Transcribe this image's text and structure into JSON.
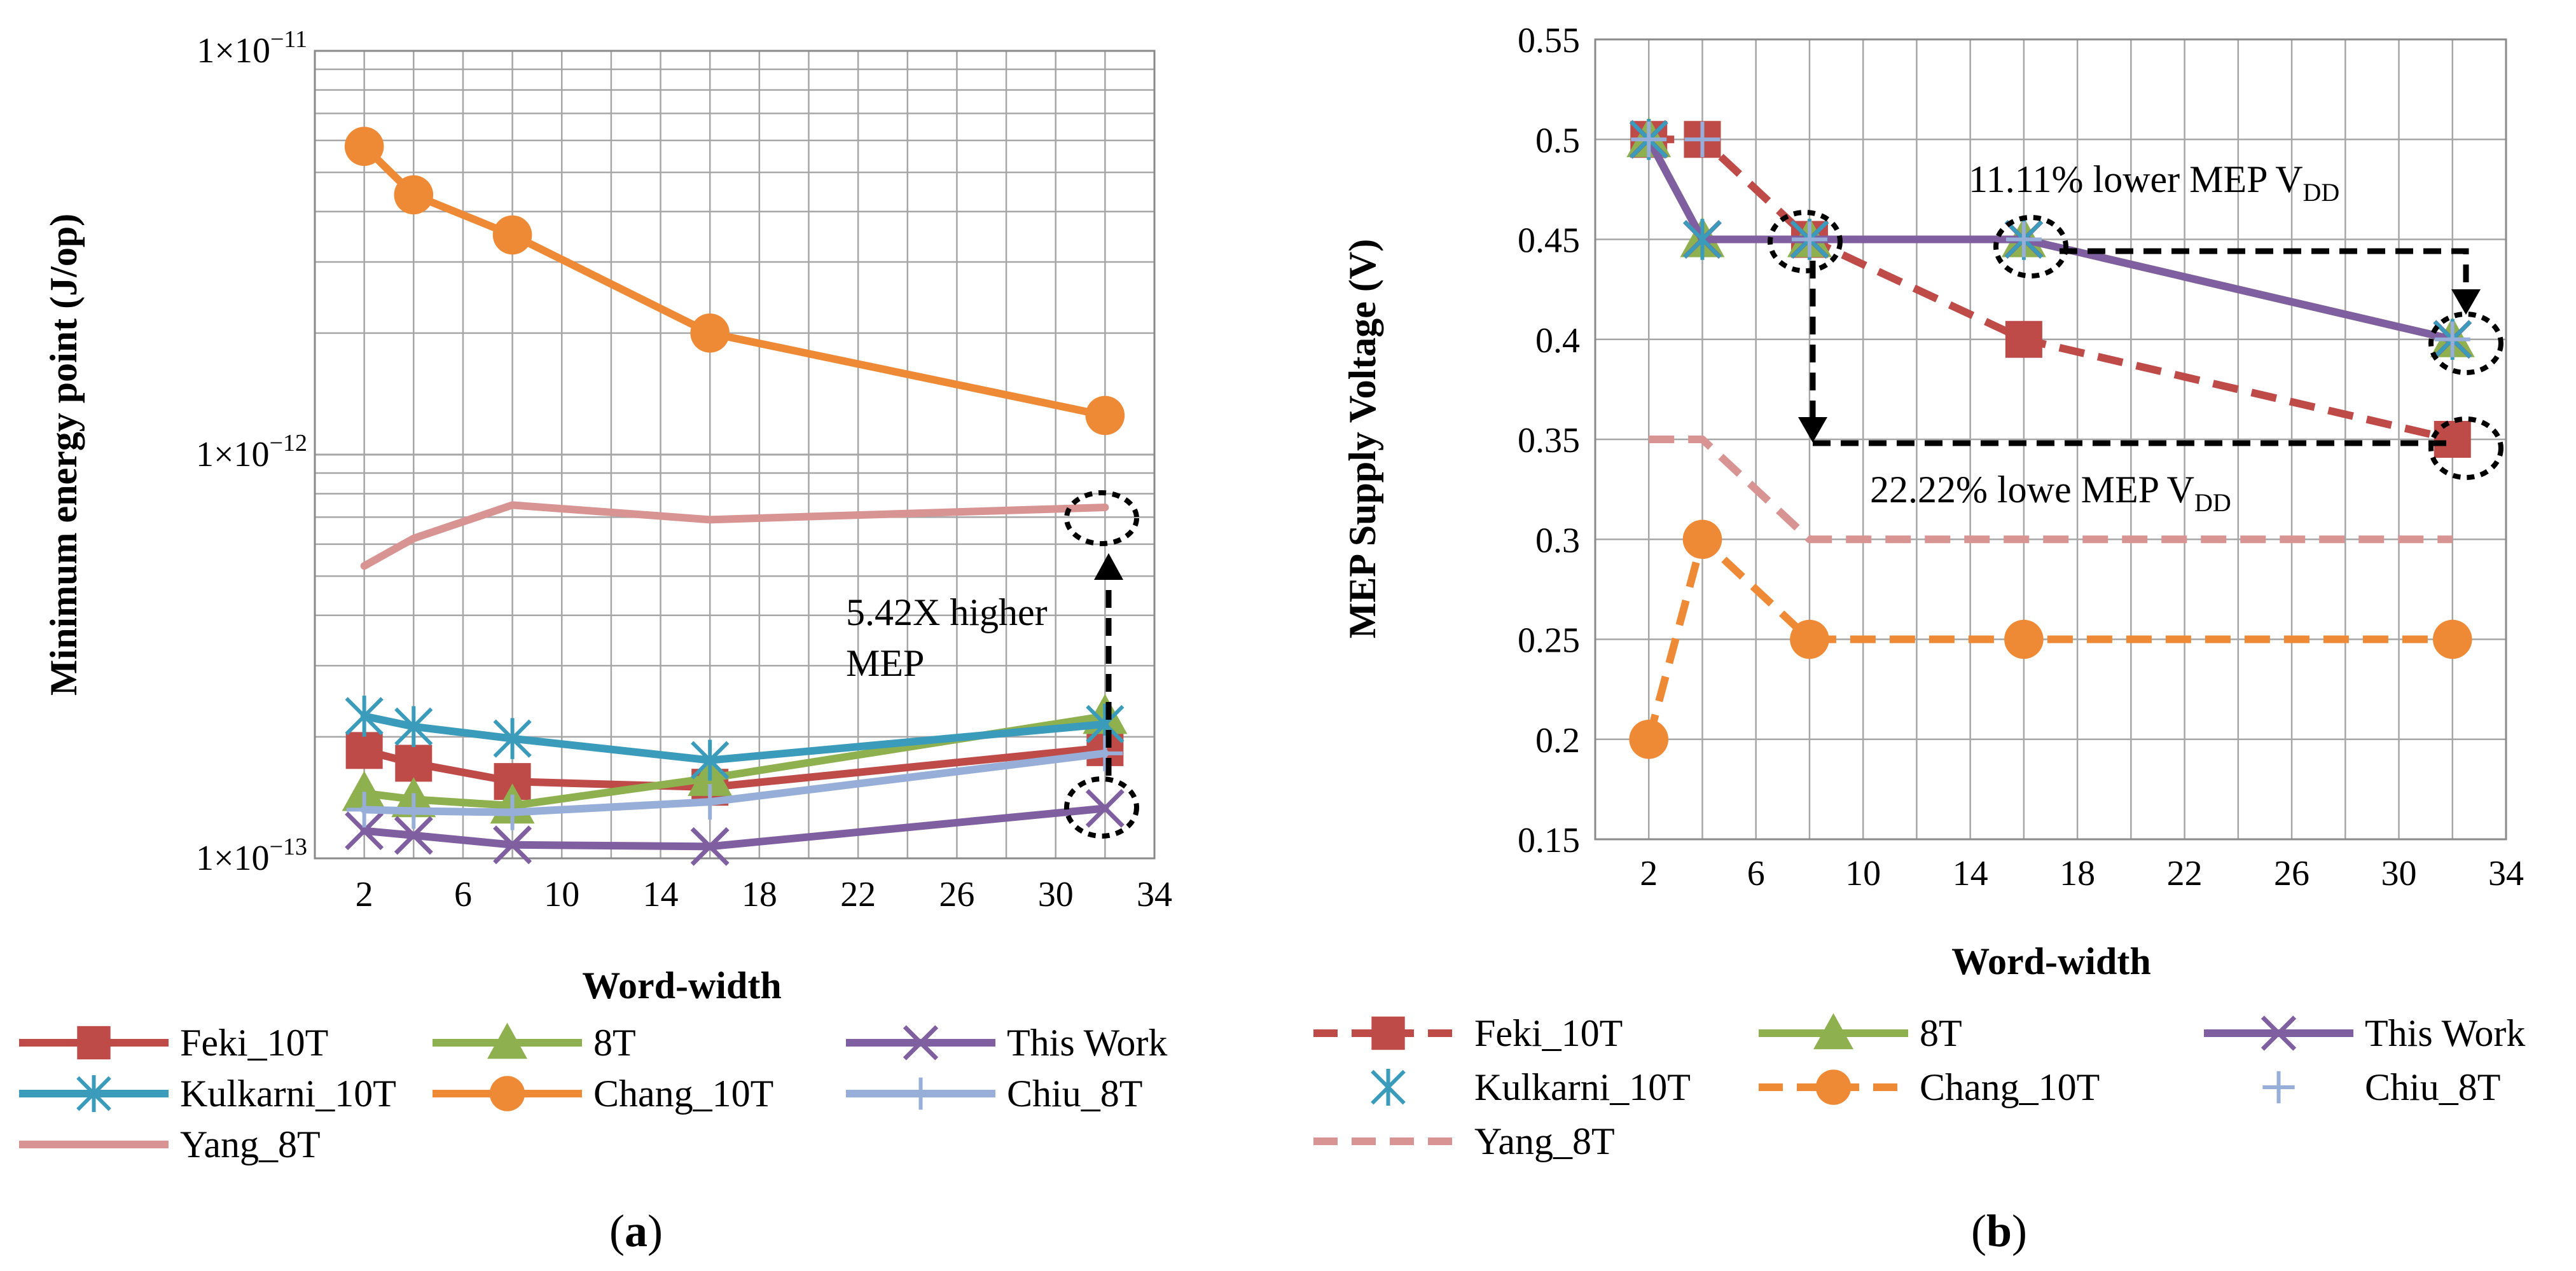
{
  "chart_data": [
    {
      "id": "a",
      "type": "line",
      "scale": "log",
      "title": "",
      "panel_label": "a",
      "xlabel": "Word-width",
      "ylabel": "Minimum energy point (J/op)",
      "xlim": [
        0,
        34
      ],
      "ylim": [
        1e-13,
        1e-11
      ],
      "xticks": [
        2,
        6,
        10,
        14,
        18,
        22,
        26,
        30,
        34
      ],
      "yticks": [
        {
          "value": 1e-11,
          "mantissa": "1×10",
          "exp": "−11"
        },
        {
          "value": 1e-12,
          "mantissa": "1×10",
          "exp": "−12"
        },
        {
          "value": 1e-13,
          "mantissa": "1×10",
          "exp": "−13"
        }
      ],
      "grid": true,
      "x": [
        2,
        4,
        8,
        16,
        32
      ],
      "series": [
        {
          "name": "Feki_10T",
          "color": "#BE4B48",
          "marker": "square",
          "dash": false,
          "values": [
            1.85e-13,
            1.72e-13,
            1.55e-13,
            1.5e-13,
            1.88e-13
          ]
        },
        {
          "name": "8T",
          "color": "#8EB04E",
          "marker": "triangle",
          "dash": false,
          "values": [
            1.45e-13,
            1.4e-13,
            1.35e-13,
            1.58e-13,
            2.25e-13
          ]
        },
        {
          "name": "This Work",
          "color": "#7F5FA0",
          "marker": "x",
          "dash": false,
          "values": [
            1.17e-13,
            1.14e-13,
            1.08e-13,
            1.07e-13,
            1.33e-13
          ]
        },
        {
          "name": "Kulkarni_10T",
          "color": "#3A9CBA",
          "marker": "asterisk",
          "dash": false,
          "values": [
            2.25e-13,
            2.12e-13,
            1.98e-13,
            1.75e-13,
            2.15e-13
          ]
        },
        {
          "name": "Chang_10T",
          "color": "#EE8A36",
          "marker": "circle",
          "dash": false,
          "values": [
            5.8e-12,
            4.4e-12,
            3.5e-12,
            2e-12,
            1.25e-12
          ]
        },
        {
          "name": "Chiu_8T",
          "color": "#96AED8",
          "marker": "plus",
          "dash": false,
          "values": [
            1.32e-13,
            1.31e-13,
            1.3e-13,
            1.38e-13,
            1.82e-13
          ]
        },
        {
          "name": "Yang_8T",
          "color": "#D89492",
          "marker": "none",
          "dash": false,
          "values": [
            5.3e-13,
            6.2e-13,
            7.5e-13,
            6.9e-13,
            7.4e-13
          ]
        }
      ],
      "annotations": [
        {
          "text_lines": [
            "5.42X higher",
            "MEP"
          ]
        }
      ]
    },
    {
      "id": "b",
      "type": "line",
      "scale": "linear",
      "title": "",
      "panel_label": "b",
      "xlabel": "Word-width",
      "ylabel": "MEP Supply Voltage (V)",
      "xlim": [
        0,
        34
      ],
      "ylim": [
        0.15,
        0.55
      ],
      "xticks": [
        2,
        6,
        10,
        14,
        18,
        22,
        26,
        30,
        34
      ],
      "yticks": [
        "0.15",
        "0.2",
        "0.25",
        "0.3",
        "0.35",
        "0.4",
        "0.45",
        "0.5",
        "0.55"
      ],
      "grid": true,
      "x": [
        2,
        4,
        8,
        16,
        32
      ],
      "series": [
        {
          "name": "Feki_10T",
          "color": "#BE4B48",
          "marker": "square",
          "dash": true,
          "values": [
            0.5,
            0.5,
            0.45,
            0.4,
            0.35
          ]
        },
        {
          "name": "8T",
          "color": "#8EB04E",
          "marker": "triangle",
          "dash": false,
          "values": [
            0.5,
            0.45,
            0.45,
            0.45,
            0.4
          ]
        },
        {
          "name": "This Work",
          "color": "#7F5FA0",
          "marker": "x",
          "dash": false,
          "values": [
            0.5,
            0.45,
            0.45,
            0.45,
            0.4
          ]
        },
        {
          "name": "Kulkarni_10T",
          "color": "#3A9CBA",
          "marker": "asterisk",
          "dash": false,
          "noline": true,
          "values": [
            0.5,
            0.45,
            0.45,
            0.45,
            0.4
          ]
        },
        {
          "name": "Chang_10T",
          "color": "#EE8A36",
          "marker": "circle",
          "dash": true,
          "values": [
            0.2,
            0.3,
            0.25,
            0.25,
            0.25
          ]
        },
        {
          "name": "Chiu_8T",
          "color": "#96AED8",
          "marker": "plus",
          "dash": false,
          "noline": true,
          "values": [
            0.5,
            0.5,
            0.45,
            0.45,
            0.4
          ]
        },
        {
          "name": "Yang_8T",
          "color": "#D89492",
          "marker": "none",
          "dash": true,
          "values": [
            0.35,
            0.35,
            0.3,
            0.3,
            0.3
          ]
        }
      ],
      "annotations": [
        {
          "text": "11.11% lower MEP V",
          "sub": "DD"
        },
        {
          "text": "22.22% lowe MEP V",
          "sub": "DD"
        }
      ]
    }
  ]
}
